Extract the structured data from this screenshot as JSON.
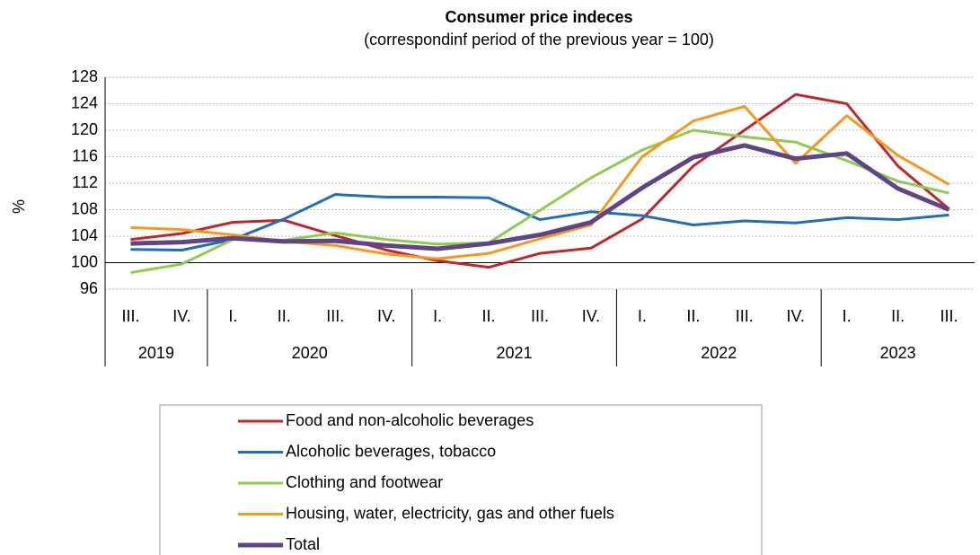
{
  "chart_data": {
    "type": "line",
    "title": "Consumer price indeces",
    "subtitle": "(correspondinf period of the previous year = 100)",
    "y_label": "%",
    "categories": [
      "III.",
      "IV.",
      "I.",
      "II.",
      "III.",
      "IV.",
      "I.",
      "II.",
      "III.",
      "IV.",
      "I.",
      "II.",
      "III.",
      "IV.",
      "I.",
      "II.",
      "III."
    ],
    "category_groups": [
      {
        "label": "2019",
        "count": 2
      },
      {
        "label": "2020",
        "count": 4
      },
      {
        "label": "2021",
        "count": 4
      },
      {
        "label": "2022",
        "count": 4
      },
      {
        "label": "2023",
        "count": 3
      }
    ],
    "ylim": [
      96,
      128
    ],
    "yticks": [
      96,
      100,
      104,
      108,
      112,
      116,
      120,
      124,
      128
    ],
    "grid": true,
    "series": [
      {
        "name": "Food and non-alcoholic beverages",
        "color": "#c0272d",
        "values": [
          103.5,
          104.4,
          106.1,
          106.4,
          104.1,
          101.9,
          100.3,
          99.3,
          101.4,
          102.2,
          106.6,
          114.6,
          120.0,
          125.4,
          124.0,
          114.6,
          108.1
        ]
      },
      {
        "name": "Alcoholic beverages, tobacco",
        "color": "#1f6fb4",
        "values": [
          102.0,
          101.9,
          103.5,
          106.6,
          110.3,
          109.9,
          109.9,
          109.8,
          106.5,
          107.7,
          107.1,
          105.7,
          106.3,
          106.0,
          106.8,
          106.5,
          107.2
        ]
      },
      {
        "name": "Clothing and footwear",
        "color": "#8dcc4f",
        "values": [
          98.5,
          99.8,
          103.5,
          103.4,
          104.5,
          103.5,
          102.8,
          103.0,
          107.9,
          112.8,
          117.0,
          120.0,
          119.0,
          118.2,
          115.4,
          112.3,
          110.5
        ]
      },
      {
        "name": "Housing, water, electricity, gas and other fuels",
        "color": "#f7981d",
        "values": [
          105.3,
          105.0,
          104.2,
          103.2,
          102.6,
          101.3,
          100.6,
          101.4,
          103.6,
          105.7,
          116.0,
          121.4,
          123.6,
          115.0,
          122.2,
          116.2,
          111.8
        ]
      },
      {
        "name": "Total",
        "color": "#5e4585",
        "values": [
          102.9,
          103.1,
          103.7,
          103.2,
          103.3,
          102.6,
          102.1,
          102.9,
          104.2,
          106.1,
          111.3,
          115.9,
          117.7,
          115.7,
          116.5,
          111.2,
          108.0
        ]
      }
    ]
  }
}
